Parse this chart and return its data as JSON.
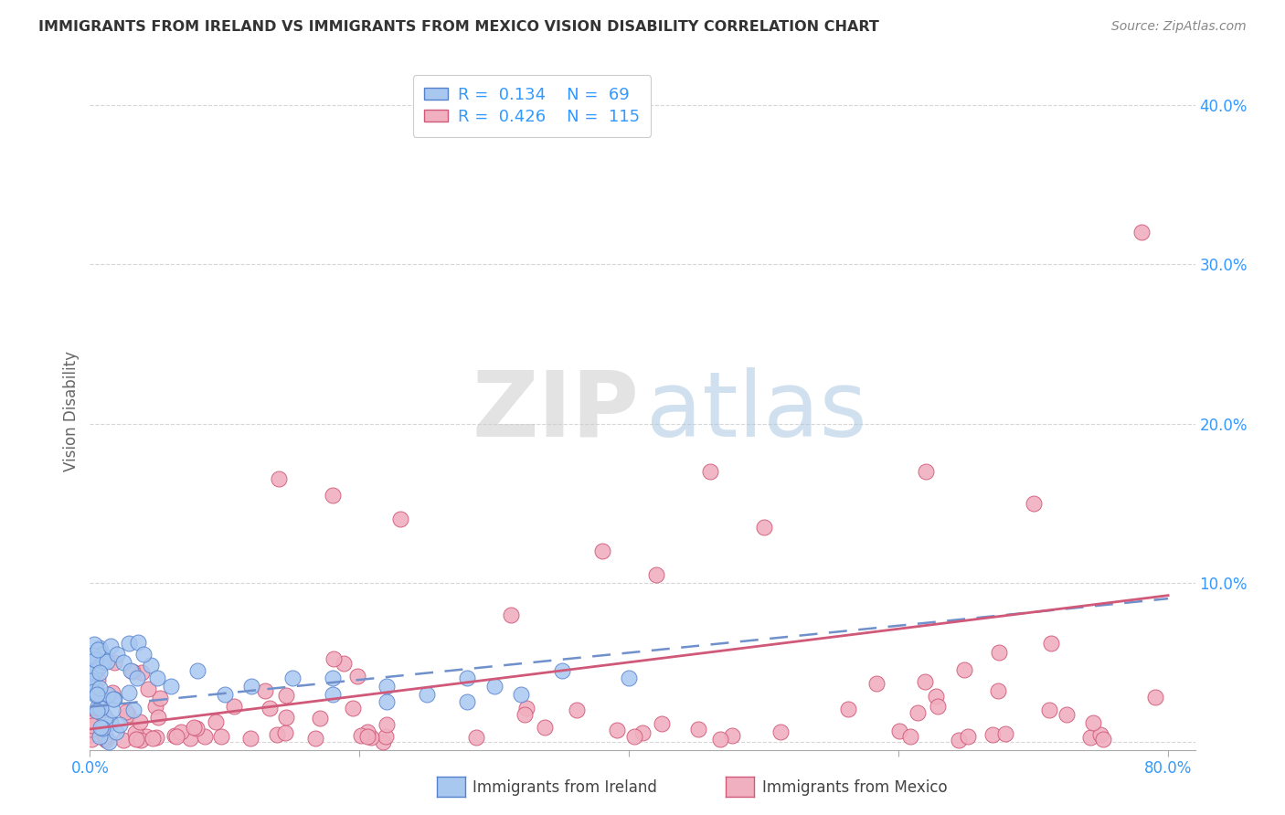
{
  "title": "IMMIGRANTS FROM IRELAND VS IMMIGRANTS FROM MEXICO VISION DISABILITY CORRELATION CHART",
  "source": "Source: ZipAtlas.com",
  "ylabel": "Vision Disability",
  "xlim": [
    0.0,
    0.82
  ],
  "ylim": [
    -0.005,
    0.42
  ],
  "yticks": [
    0.0,
    0.1,
    0.2,
    0.3,
    0.4
  ],
  "ytick_labels": [
    "",
    "10.0%",
    "20.0%",
    "30.0%",
    "40.0%"
  ],
  "xticks": [
    0.0,
    0.2,
    0.4,
    0.6,
    0.8
  ],
  "ireland_color": "#a8c8f0",
  "mexico_color": "#f0b0c0",
  "ireland_edge_color": "#5580cc",
  "mexico_edge_color": "#d05878",
  "ireland_line_color": "#7090cc",
  "mexico_line_color": "#d05878",
  "background_color": "#ffffff",
  "grid_color": "#cccccc",
  "legend_r_n_color": "#3399ff",
  "axis_label_color": "#3399ff",
  "title_color": "#333333",
  "source_color": "#888888",
  "ylabel_color": "#666666",
  "watermark_zip_color": "#d5d5d5",
  "watermark_atlas_color": "#b0cce0"
}
